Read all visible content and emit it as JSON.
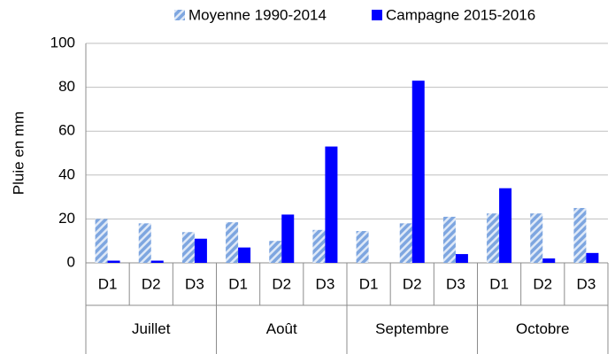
{
  "chart_data": {
    "type": "bar",
    "y_label": "Pluie en mm",
    "categories": [
      "D1",
      "D2",
      "D3",
      "D1",
      "D2",
      "D3",
      "D1",
      "D2",
      "D3",
      "D1",
      "D2",
      "D3"
    ],
    "groups": [
      "Juillet",
      "Août",
      "Septembre",
      "Octobre"
    ],
    "series": [
      {
        "name": "Moyenne 1990-2014",
        "color": "#7ea6e0",
        "hatch": true,
        "values": [
          20,
          18,
          14,
          18.5,
          10,
          15,
          14.5,
          18,
          21,
          22.5,
          22.5,
          25
        ]
      },
      {
        "name": "Campagne 2015-2016",
        "color": "#0000ff",
        "hatch": false,
        "values": [
          1,
          1,
          11,
          7,
          22,
          53,
          0,
          83,
          4,
          34,
          2,
          4.5
        ]
      }
    ],
    "ylim": [
      0,
      100
    ],
    "yticks": [
      0,
      20,
      40,
      60,
      80,
      100
    ],
    "grid": true,
    "legend": "top"
  }
}
